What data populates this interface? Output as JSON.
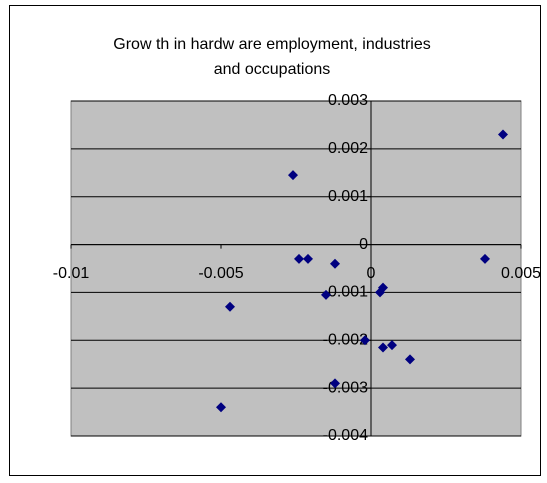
{
  "chart_data": {
    "type": "scatter",
    "title": [
      "Grow th in hardw are employment, industries",
      "and occupations"
    ],
    "x": [
      0.0044,
      -0.0026,
      -0.0024,
      -0.0021,
      -0.0012,
      0.0038,
      -0.0047,
      -0.0015,
      0.0004,
      0.0003,
      -0.0002,
      0.0004,
      0.0007,
      0.0013,
      -0.0012,
      -0.005
    ],
    "values": [
      0.0023,
      0.00145,
      -0.0003,
      -0.0003,
      -0.0004,
      -0.0003,
      -0.0013,
      -0.00105,
      -0.0009,
      -0.001,
      -0.002,
      -0.00215,
      -0.0021,
      -0.0024,
      -0.0029,
      -0.0034
    ],
    "color": "#000080",
    "xlim": [
      -0.01,
      0.005
    ],
    "xticks": [
      -0.01,
      -0.005,
      0,
      0.005
    ],
    "ylim": [
      -0.004,
      0.003
    ],
    "yticks": [
      0.003,
      0.002,
      0.001,
      0,
      -0.001,
      -0.002,
      -0.003,
      -0.004
    ],
    "grid": true
  }
}
